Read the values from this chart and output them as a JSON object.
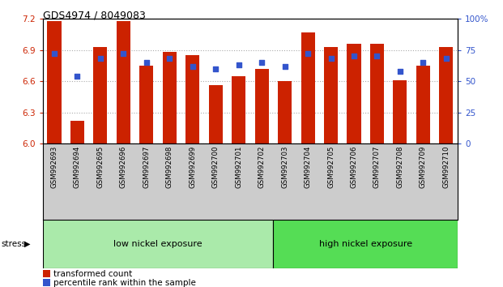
{
  "title": "GDS4974 / 8049083",
  "samples": [
    "GSM992693",
    "GSM992694",
    "GSM992695",
    "GSM992696",
    "GSM992697",
    "GSM992698",
    "GSM992699",
    "GSM992700",
    "GSM992701",
    "GSM992702",
    "GSM992703",
    "GSM992704",
    "GSM992705",
    "GSM992706",
    "GSM992707",
    "GSM992708",
    "GSM992709",
    "GSM992710"
  ],
  "transformed_count": [
    7.18,
    6.22,
    6.93,
    7.18,
    6.75,
    6.88,
    6.85,
    6.56,
    6.65,
    6.72,
    6.6,
    7.07,
    6.93,
    6.96,
    6.96,
    6.61,
    6.75,
    6.93
  ],
  "percentile_rank": [
    72,
    54,
    68,
    72,
    65,
    68,
    62,
    60,
    63,
    65,
    62,
    72,
    68,
    70,
    70,
    58,
    65,
    68
  ],
  "bar_color": "#cc2200",
  "dot_color": "#3355cc",
  "ylim_left": [
    6.0,
    7.2
  ],
  "ylim_right": [
    0,
    100
  ],
  "yticks_left": [
    6.0,
    6.3,
    6.6,
    6.9,
    7.2
  ],
  "yticks_right": [
    0,
    25,
    50,
    75,
    100
  ],
  "ytick_labels_right": [
    "0",
    "25",
    "50",
    "75",
    "100%"
  ],
  "group1_label": "low nickel exposure",
  "group2_label": "high nickel exposure",
  "group1_count": 10,
  "group2_count": 8,
  "stress_label": "stress",
  "legend_bar_label": "transformed count",
  "legend_dot_label": "percentile rank within the sample",
  "group1_color": "#aaeaaa",
  "group2_color": "#55dd55",
  "xlabel_color": "#cc2200",
  "ylabel_right_color": "#3355cc",
  "background_color": "#ffffff",
  "grid_color": "#aaaaaa",
  "xtick_bg_color": "#cccccc"
}
